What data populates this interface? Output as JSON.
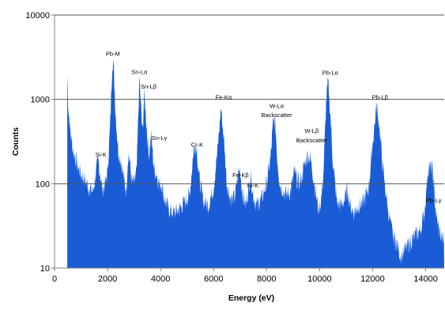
{
  "chart_data": {
    "type": "area",
    "title": "",
    "xlabel": "Energy (eV)",
    "ylabel": "Counts",
    "xlim": [
      0,
      14700
    ],
    "ylim": [
      10,
      10000
    ],
    "y_scale": "log",
    "grid": "horizontal major gridlines",
    "legend": "none",
    "x_ticks": [
      0,
      2000,
      4000,
      6000,
      8000,
      10000,
      12000,
      14000
    ],
    "x_tick_labels": [
      "0",
      "2000",
      "4000",
      "6000",
      "8000",
      "10000",
      "12000",
      "14000"
    ],
    "y_ticks": [
      10,
      100,
      1000,
      10000
    ],
    "y_tick_labels": [
      "10",
      "100",
      "1000",
      "10000"
    ],
    "series": [
      {
        "color": "#1a5cd6",
        "x": [
          480,
          520,
          600,
          700,
          850,
          1000,
          1150,
          1300,
          1450,
          1550,
          1650,
          1720,
          1800,
          1900,
          2000,
          2100,
          2180,
          2230,
          2300,
          2400,
          2500,
          2600,
          2700,
          2780,
          2850,
          2900,
          3000,
          3100,
          3200,
          3260,
          3320,
          3380,
          3440,
          3500,
          3560,
          3650,
          3750,
          3850,
          3950,
          4050,
          4150,
          4300,
          4500,
          4700,
          4900,
          5100,
          5250,
          5350,
          5450,
          5600,
          5800,
          6000,
          6150,
          6280,
          6400,
          6500,
          6650,
          6800,
          6930,
          7000,
          7080,
          7200,
          7330,
          7400,
          7470,
          7600,
          7800,
          8000,
          8150,
          8250,
          8330,
          8400,
          8500,
          8700,
          8900,
          9050,
          9150,
          9250,
          9350,
          9450,
          9550,
          9650,
          9750,
          9850,
          9950,
          10050,
          10150,
          10250,
          10320,
          10400,
          10500,
          10650,
          10800,
          10950,
          11050,
          11150,
          11300,
          11450,
          11650,
          11850,
          12000,
          12150,
          12250,
          12350,
          12450,
          12600,
          12750,
          12900,
          13050,
          13200,
          13400,
          13600,
          13800,
          13950,
          14100,
          14250,
          14300,
          14400,
          14550,
          14700
        ],
        "values": [
          1900,
          800,
          400,
          250,
          170,
          130,
          110,
          90,
          80,
          130,
          190,
          130,
          85,
          95,
          140,
          500,
          2800,
          2500,
          700,
          250,
          190,
          120,
          80,
          230,
          170,
          110,
          100,
          140,
          1800,
          800,
          380,
          1150,
          700,
          350,
          220,
          380,
          150,
          130,
          100,
          100,
          65,
          50,
          45,
          50,
          60,
          75,
          260,
          300,
          120,
          65,
          55,
          90,
          250,
          800,
          300,
          100,
          65,
          70,
          130,
          150,
          80,
          55,
          90,
          130,
          80,
          55,
          65,
          100,
          200,
          550,
          520,
          200,
          100,
          75,
          80,
          140,
          110,
          100,
          130,
          180,
          220,
          200,
          130,
          80,
          50,
          60,
          140,
          1000,
          1600,
          700,
          180,
          60,
          55,
          65,
          90,
          55,
          45,
          55,
          60,
          90,
          300,
          850,
          500,
          200,
          100,
          45,
          25,
          20,
          14,
          16,
          20,
          24,
          28,
          45,
          160,
          150,
          100,
          40,
          25,
          20
        ]
      }
    ],
    "annotations": [
      {
        "text": "Pb-M",
        "x": 2200,
        "y": 3300
      },
      {
        "text": "Si-K",
        "x": 1750,
        "y": 210
      },
      {
        "text": "Sn-Lα",
        "x": 3200,
        "y": 2000
      },
      {
        "text": "Sn-Lβ",
        "x": 3550,
        "y": 1350
      },
      {
        "text": "Sn-Lγ",
        "x": 3950,
        "y": 330
      },
      {
        "text": "Cr-K",
        "x": 5380,
        "y": 275
      },
      {
        "text": "Fe-Kα",
        "x": 6380,
        "y": 1000
      },
      {
        "text": "Fe-Kβ",
        "x": 7020,
        "y": 120
      },
      {
        "text": "Ni-K",
        "x": 7480,
        "y": 90
      },
      {
        "text": "W-Lα",
        "x": 8380,
        "y": 790
      },
      {
        "text": "Backscatter",
        "x": 8380,
        "y": 620
      },
      {
        "text": "W-Lβ",
        "x": 9700,
        "y": 400
      },
      {
        "text": "Backscatter",
        "x": 9700,
        "y": 310
      },
      {
        "text": "Pb-Lα",
        "x": 10400,
        "y": 1950
      },
      {
        "text": "Pb-Lβ",
        "x": 12280,
        "y": 1000
      },
      {
        "text": "Pb-Lγ",
        "x": 14300,
        "y": 60
      }
    ]
  }
}
